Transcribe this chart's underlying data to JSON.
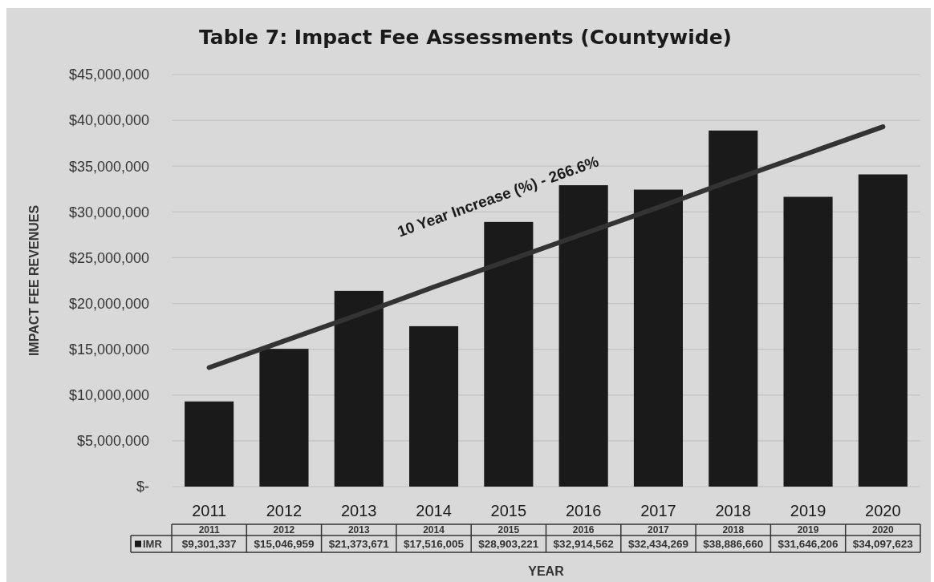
{
  "chart_data": {
    "type": "bar",
    "title": "Table 7: Impact Fee Assessments (Countywide)",
    "xlabel": "YEAR",
    "ylabel": "IMPACT FEE REVENUES",
    "categories": [
      "2011",
      "2012",
      "2013",
      "2014",
      "2015",
      "2016",
      "2017",
      "2018",
      "2019",
      "2020"
    ],
    "series": [
      {
        "name": "IMR",
        "color": "#1a1a1a",
        "values": [
          9301337,
          15046959,
          21373671,
          17516005,
          28903221,
          32914562,
          32434269,
          38886660,
          31646206,
          34097623
        ],
        "value_labels": [
          "$9,301,337",
          "$15,046,959",
          "$21,373,671",
          "$17,516,005",
          "$28,903,221",
          "$32,914,562",
          "$32,434,269",
          "$38,886,660",
          "$31,646,206",
          "$34,097,623"
        ]
      },
      {
        "type": "line",
        "color": "#333333",
        "values": [
          13000000,
          15900000,
          18800000,
          21800000,
          24700000,
          27600000,
          30500000,
          33500000,
          36400000,
          39300000
        ]
      }
    ],
    "ylim": [
      0,
      45000000
    ],
    "yticks": [
      {
        "value": 0,
        "label": "$-"
      },
      {
        "value": 5000000,
        "label": "$5,000,000"
      },
      {
        "value": 10000000,
        "label": "$10,000,000"
      },
      {
        "value": 15000000,
        "label": "$15,000,000"
      },
      {
        "value": 20000000,
        "label": "$20,000,000"
      },
      {
        "value": 25000000,
        "label": "$25,000,000"
      },
      {
        "value": 30000000,
        "label": "$30,000,000"
      },
      {
        "value": 35000000,
        "label": "$35,000,000"
      },
      {
        "value": 40000000,
        "label": "$40,000,000"
      },
      {
        "value": 45000000,
        "label": "$45,000,000"
      }
    ],
    "grid": "y",
    "annotations": [
      "10 Year Increase (%) - 266.6%"
    ]
  }
}
